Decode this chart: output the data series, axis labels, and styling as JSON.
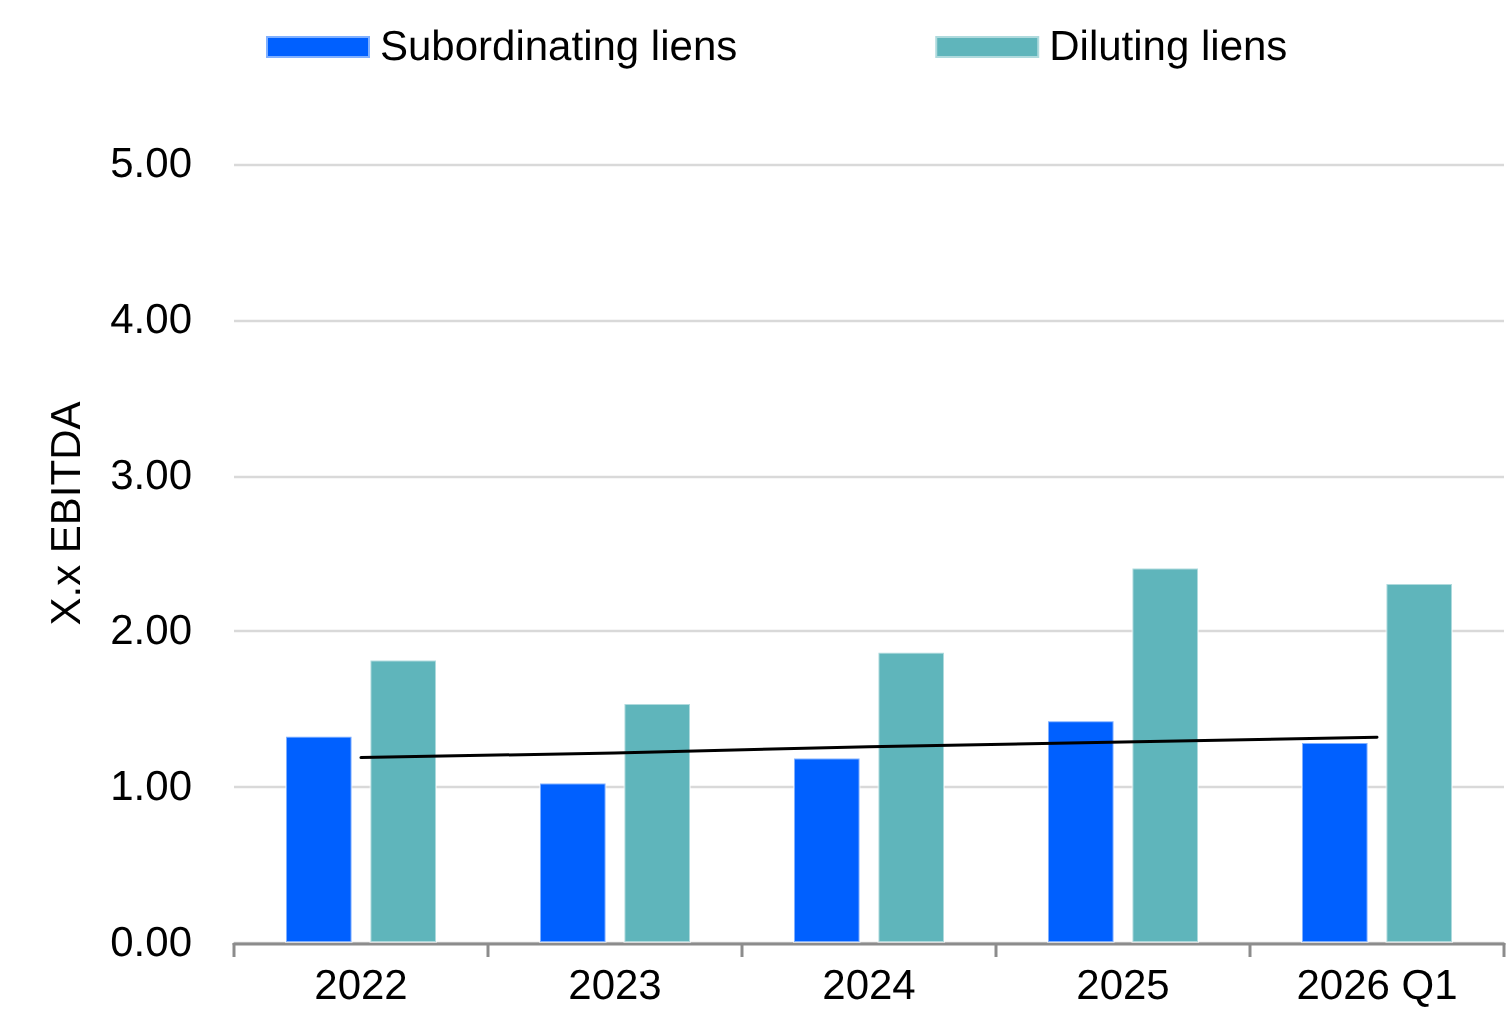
{
  "chart_data": {
    "type": "bar",
    "ylabel": "X.x EBITDA",
    "categories": [
      "2022",
      "2023",
      "2024",
      "2025",
      "2026 Q1"
    ],
    "series": [
      {
        "name": "Subordinating liens",
        "color": "#0060ff",
        "values": [
          1.33,
          1.03,
          1.19,
          1.43,
          1.29
        ]
      },
      {
        "name": "Diluting liens",
        "color": "#5fb5bb",
        "values": [
          1.82,
          1.54,
          1.87,
          2.41,
          2.31
        ]
      },
      {
        "type": "line",
        "color": "#000000",
        "values": [
          1.19,
          1.22,
          1.26,
          1.29,
          1.32
        ]
      }
    ],
    "ylim": [
      0,
      5
    ],
    "yticks": [
      {
        "value": 0,
        "label": "0.00"
      },
      {
        "value": 1,
        "label": "1.00"
      },
      {
        "value": 2,
        "label": "2.00"
      },
      {
        "value": 3,
        "label": "3.00"
      },
      {
        "value": 4,
        "label": "4.00"
      },
      {
        "value": 5,
        "label": "5.00"
      }
    ],
    "grid": "y",
    "legend": "top",
    "marker": "none"
  }
}
